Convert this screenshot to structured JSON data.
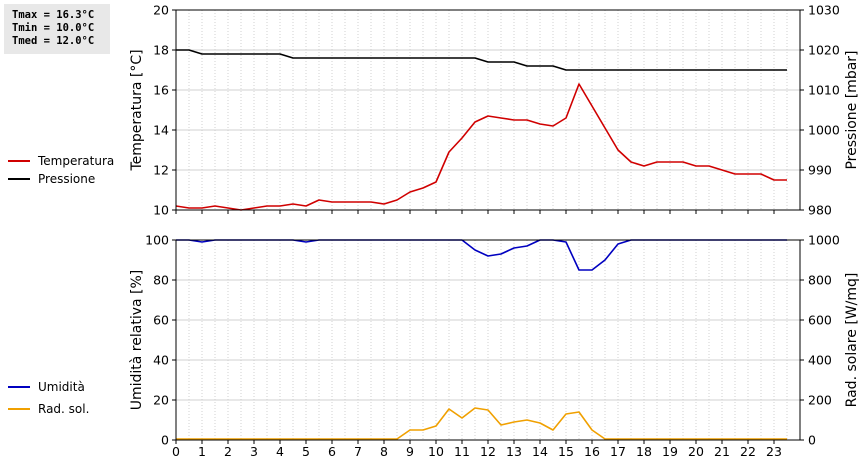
{
  "stats": {
    "tmax": "Tmax = 16.3°C",
    "tmin": "Tmin = 10.0°C",
    "tmed": "Tmed = 12.0°C"
  },
  "colors": {
    "temperature": "#d00000",
    "pressure": "#000000",
    "humidity": "#0000c0",
    "radiation": "#f0a000",
    "grid": "#d0d0d0"
  },
  "chart_data": [
    {
      "type": "line",
      "xlim": [
        0,
        24
      ],
      "xticks": [
        0,
        1,
        2,
        3,
        4,
        5,
        6,
        7,
        8,
        9,
        10,
        11,
        12,
        13,
        14,
        15,
        16,
        17,
        18,
        19,
        20,
        21,
        22,
        23
      ],
      "left_axis": {
        "label": "Temperatura [°C]",
        "lim": [
          10,
          20
        ],
        "ticks": [
          10,
          12,
          14,
          16,
          18,
          20
        ]
      },
      "right_axis": {
        "label": "Pressione [mbar]",
        "lim": [
          980,
          1030
        ],
        "ticks": [
          980,
          990,
          1000,
          1010,
          1020,
          1030
        ]
      },
      "grid": true,
      "legend_position": "left",
      "series": [
        {
          "name": "Temperatura",
          "axis": "left",
          "x": [
            0,
            0.5,
            1,
            1.5,
            2,
            2.5,
            3,
            3.5,
            4,
            4.5,
            5,
            5.5,
            6,
            6.5,
            7,
            7.5,
            8,
            8.5,
            9,
            9.5,
            10,
            10.5,
            11,
            11.5,
            12,
            12.5,
            13,
            13.5,
            14,
            14.5,
            15,
            15.5,
            16,
            16.5,
            17,
            17.5,
            18,
            18.5,
            19,
            19.5,
            20,
            20.5,
            21,
            21.5,
            22,
            22.5,
            23,
            23.5
          ],
          "values": [
            10.2,
            10.1,
            10.1,
            10.2,
            10.1,
            10.0,
            10.1,
            10.2,
            10.2,
            10.3,
            10.2,
            10.5,
            10.4,
            10.4,
            10.4,
            10.4,
            10.3,
            10.5,
            10.9,
            11.1,
            11.4,
            12.9,
            13.6,
            14.4,
            14.7,
            14.6,
            14.5,
            14.5,
            14.3,
            14.2,
            14.6,
            16.3,
            15.2,
            14.1,
            13.0,
            12.4,
            12.2,
            12.4,
            12.4,
            12.4,
            12.2,
            12.2,
            12.0,
            11.8,
            11.8,
            11.8,
            11.5,
            11.5
          ]
        },
        {
          "name": "Pressione",
          "axis": "right",
          "x": [
            0,
            0.5,
            1,
            2,
            3,
            4,
            4.5,
            5,
            6,
            7,
            8,
            9,
            10,
            11,
            11.5,
            12,
            13,
            13.5,
            14,
            14.5,
            15,
            16,
            17,
            18,
            19,
            20,
            21,
            22,
            23,
            23.5
          ],
          "values": [
            1020,
            1020,
            1019,
            1019,
            1019,
            1019,
            1018,
            1018,
            1018,
            1018,
            1018,
            1018,
            1018,
            1018,
            1018,
            1017,
            1017,
            1016,
            1016,
            1016,
            1015,
            1015,
            1015,
            1015,
            1015,
            1015,
            1015,
            1015,
            1015,
            1015
          ]
        }
      ]
    },
    {
      "type": "line",
      "xlim": [
        0,
        24
      ],
      "xticks": [
        0,
        1,
        2,
        3,
        4,
        5,
        6,
        7,
        8,
        9,
        10,
        11,
        12,
        13,
        14,
        15,
        16,
        17,
        18,
        19,
        20,
        21,
        22,
        23
      ],
      "left_axis": {
        "label": "Umidità relativa [%]",
        "lim": [
          0,
          100
        ],
        "ticks": [
          0,
          20,
          40,
          60,
          80,
          100
        ]
      },
      "right_axis": {
        "label": "Rad. solare [W/mq]",
        "lim": [
          0,
          1000
        ],
        "ticks": [
          0,
          200,
          400,
          600,
          800,
          1000
        ]
      },
      "grid": true,
      "legend_position": "left",
      "series": [
        {
          "name": "Umidità",
          "axis": "left",
          "x": [
            0,
            0.5,
            1,
            1.5,
            2,
            3,
            4,
            4.5,
            5,
            5.5,
            6,
            7,
            8,
            9,
            10,
            11,
            11.5,
            12,
            12.5,
            13,
            13.5,
            14,
            14.5,
            15,
            15.5,
            16,
            16.5,
            17,
            17.5,
            18,
            19,
            20,
            21,
            22,
            23,
            23.5
          ],
          "values": [
            100,
            100,
            99,
            100,
            100,
            100,
            100,
            100,
            99,
            100,
            100,
            100,
            100,
            100,
            100,
            100,
            95,
            92,
            93,
            96,
            97,
            100,
            100,
            99,
            85,
            85,
            90,
            98,
            100,
            100,
            100,
            100,
            100,
            100,
            100,
            100
          ]
        },
        {
          "name": "Rad. sol.",
          "axis": "right",
          "x": [
            0,
            1,
            2,
            3,
            4,
            5,
            6,
            7,
            8,
            8.5,
            9,
            9.5,
            10,
            10.5,
            11,
            11.5,
            12,
            12.5,
            13,
            13.5,
            14,
            14.5,
            15,
            15.5,
            16,
            16.5,
            17,
            18,
            19,
            20,
            21,
            22,
            23,
            23.5
          ],
          "values": [
            5,
            5,
            5,
            5,
            5,
            5,
            5,
            5,
            5,
            5,
            50,
            50,
            70,
            155,
            110,
            160,
            150,
            75,
            90,
            100,
            85,
            50,
            130,
            140,
            50,
            5,
            5,
            5,
            5,
            5,
            5,
            5,
            5,
            5
          ]
        }
      ]
    }
  ]
}
